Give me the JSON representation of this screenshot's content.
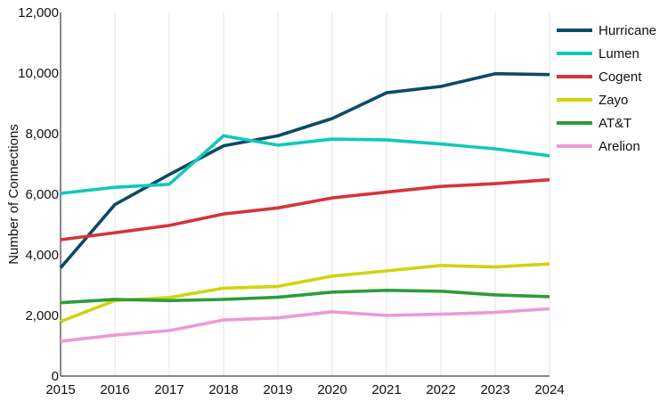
{
  "chart_data": {
    "type": "line",
    "title": "",
    "xlabel": "",
    "ylabel": "Number of Connections",
    "x": [
      2015,
      2016,
      2017,
      2018,
      2019,
      2020,
      2021,
      2022,
      2023,
      2024
    ],
    "xticks": [
      "2015",
      "2016",
      "2017",
      "2018",
      "2019",
      "2020",
      "2021",
      "2022",
      "2023",
      "2024"
    ],
    "yticks": [
      "0",
      "2,000",
      "4,000",
      "6,000",
      "8,000",
      "10,000",
      "12,000"
    ],
    "ylim": [
      0,
      12000
    ],
    "grid": "vertical",
    "legend_position": "top-right",
    "series": [
      {
        "name": "Hurricane",
        "color": "#0b4a68",
        "values": [
          3570,
          5660,
          6650,
          7600,
          7930,
          8500,
          9350,
          9560,
          9980,
          9950
        ]
      },
      {
        "name": "Lumen",
        "color": "#10c8bb",
        "values": [
          6030,
          6230,
          6330,
          7930,
          7620,
          7820,
          7790,
          7660,
          7500,
          7270
        ]
      },
      {
        "name": "Cogent",
        "color": "#d6343a",
        "values": [
          4500,
          4730,
          4970,
          5350,
          5550,
          5880,
          6070,
          6260,
          6350,
          6480
        ]
      },
      {
        "name": "Zayo",
        "color": "#d2d30e",
        "values": [
          1800,
          2490,
          2590,
          2900,
          2960,
          3300,
          3470,
          3650,
          3600,
          3700
        ]
      },
      {
        "name": "AT&T",
        "color": "#2e9b3c",
        "values": [
          2420,
          2530,
          2490,
          2530,
          2600,
          2770,
          2830,
          2800,
          2680,
          2620
        ]
      },
      {
        "name": "Arelion",
        "color": "#ec9ad6",
        "values": [
          1150,
          1350,
          1500,
          1850,
          1920,
          2120,
          2000,
          2040,
          2100,
          2220
        ]
      }
    ]
  }
}
